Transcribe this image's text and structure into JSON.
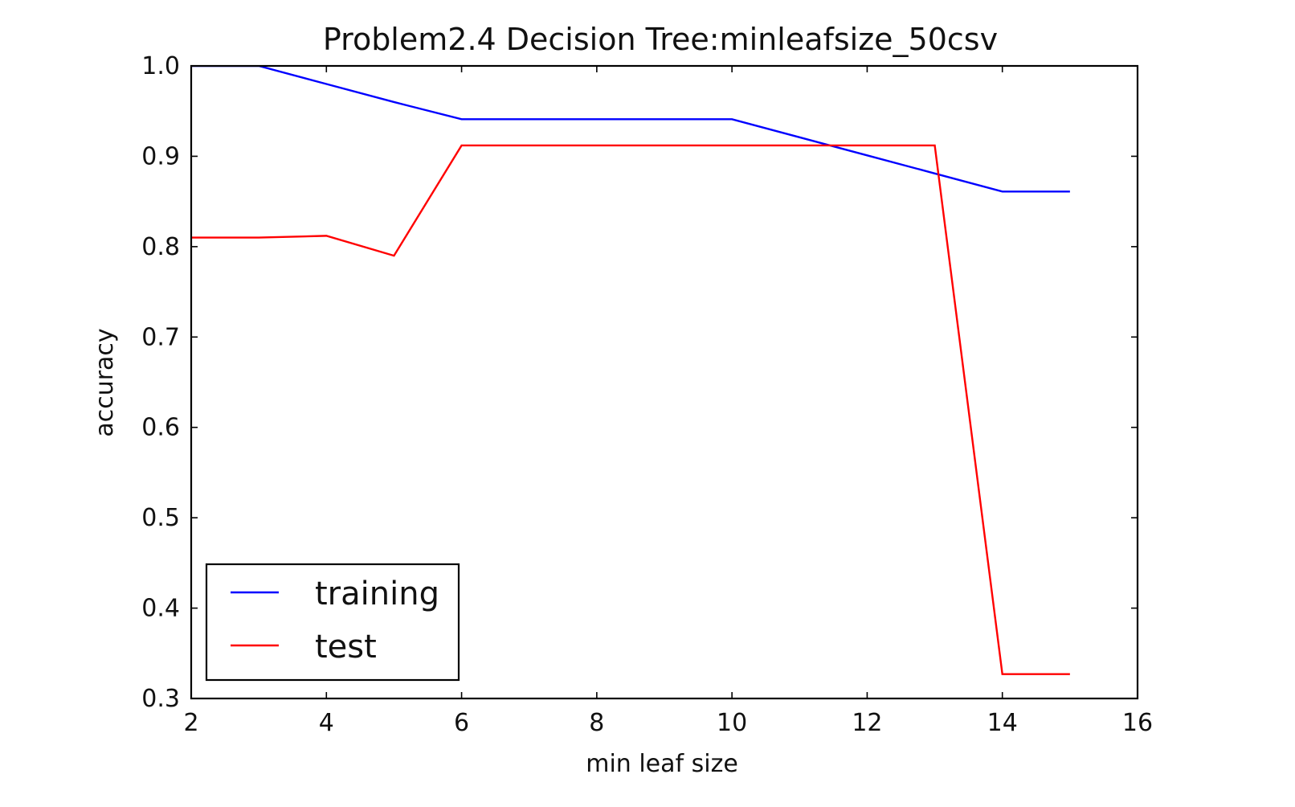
{
  "chart_data": {
    "type": "line",
    "title": "Problem2.4 Decision Tree:minleafsize_50csv",
    "xlabel": "min leaf size",
    "ylabel": "accuracy",
    "xlim": [
      2,
      16
    ],
    "ylim": [
      0.3,
      1.0
    ],
    "xticks": [
      2,
      4,
      6,
      8,
      10,
      12,
      14,
      16
    ],
    "xtick_labels": [
      "2",
      "4",
      "6",
      "8",
      "10",
      "12",
      "14",
      "16"
    ],
    "yticks": [
      0.3,
      0.4,
      0.5,
      0.6,
      0.7,
      0.8,
      0.9,
      1.0
    ],
    "ytick_labels": [
      "0.3",
      "0.4",
      "0.5",
      "0.6",
      "0.7",
      "0.8",
      "0.9",
      "1.0"
    ],
    "grid": false,
    "legend_position": "lower left",
    "series": [
      {
        "name": "training",
        "color": "#0000ff",
        "x": [
          2,
          3,
          4,
          5,
          6,
          7,
          8,
          9,
          10,
          11,
          12,
          13,
          14,
          15
        ],
        "y": [
          1.0,
          1.0,
          0.98,
          0.96,
          0.941,
          0.941,
          0.941,
          0.941,
          0.941,
          0.921,
          0.901,
          0.881,
          0.861,
          0.861
        ]
      },
      {
        "name": "test",
        "color": "#ff0000",
        "x": [
          2,
          3,
          4,
          5,
          6,
          7,
          8,
          9,
          10,
          11,
          12,
          13,
          14,
          15
        ],
        "y": [
          0.81,
          0.81,
          0.812,
          0.79,
          0.912,
          0.912,
          0.912,
          0.912,
          0.912,
          0.912,
          0.912,
          0.912,
          0.327,
          0.327
        ]
      }
    ]
  }
}
